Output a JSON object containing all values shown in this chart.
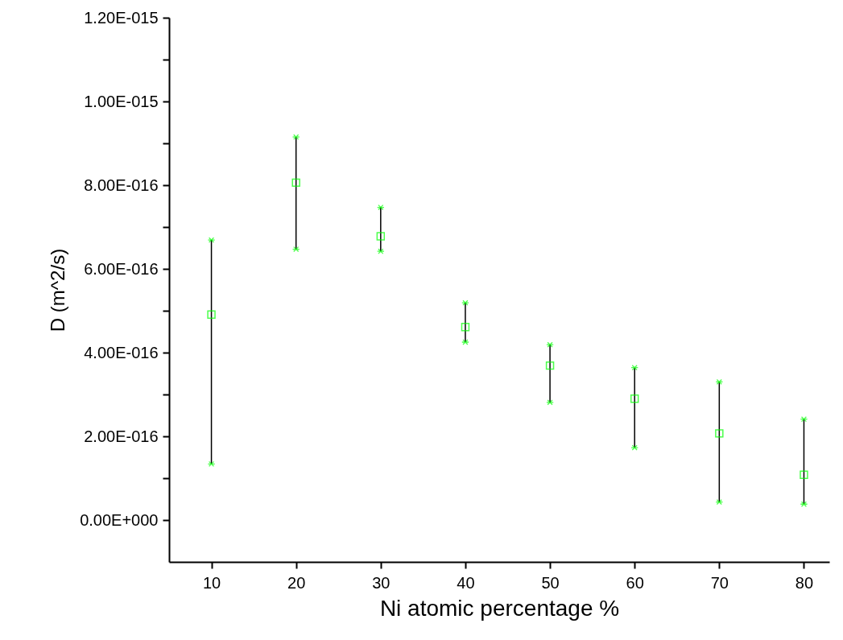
{
  "chart_data": {
    "type": "scatter",
    "xlabel": "Ni atomic percentage %",
    "ylabel": "D (m^2/s)",
    "x": [
      10,
      20,
      30,
      40,
      50,
      60,
      70,
      80
    ],
    "series": [
      {
        "color": "#00ff00",
        "values": [
          4.91e-16,
          8.06e-16,
          6.78e-16,
          4.61e-16,
          3.69e-16,
          2.9e-16,
          2.07e-16,
          1.08e-16
        ],
        "errors": [
          [
            1.34e-16,
            6.69e-16
          ],
          [
            6.47e-16,
            9.15e-16
          ],
          [
            6.42e-16,
            7.47e-16
          ],
          [
            4.25e-16,
            5.19e-16
          ],
          [
            2.81e-16,
            4.19e-16
          ],
          [
            1.73e-16,
            3.64e-16
          ],
          [
            4.3e-17,
            3.3e-16
          ],
          [
            3.8e-17,
            2.41e-16
          ]
        ]
      }
    ],
    "marker": "square",
    "xlim": [
      5,
      83
    ],
    "xticks": [
      10,
      20,
      30,
      40,
      50,
      60,
      70,
      80
    ],
    "ylim": [
      -1e-16,
      1.2e-15
    ],
    "yticks": [
      {
        "value": 0,
        "label": "0.00E+000"
      },
      {
        "value": 1e-16,
        "label": null
      },
      {
        "value": 2e-16,
        "label": "2.00E-016"
      },
      {
        "value": 3e-16,
        "label": null
      },
      {
        "value": 4e-16,
        "label": "4.00E-016"
      },
      {
        "value": 5e-16,
        "label": null
      },
      {
        "value": 6e-16,
        "label": "6.00E-016"
      },
      {
        "value": 7e-16,
        "label": null
      },
      {
        "value": 8e-16,
        "label": "8.00E-016"
      },
      {
        "value": 9e-16,
        "label": null
      },
      {
        "value": 1e-15,
        "label": "1.00E-015"
      },
      {
        "value": 1.1e-15,
        "label": null
      },
      {
        "value": 1.2e-15,
        "label": "1.20E-015"
      }
    ],
    "grid": false
  }
}
